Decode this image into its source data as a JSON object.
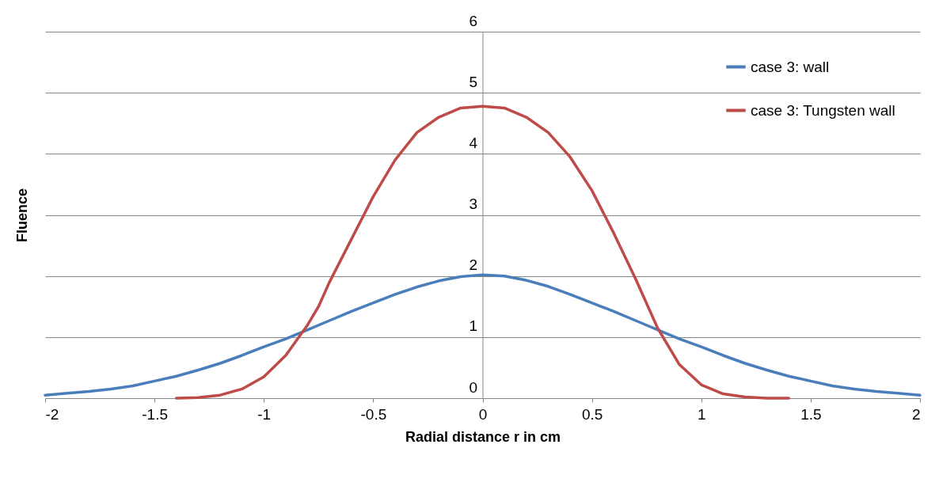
{
  "chart_data": {
    "type": "line",
    "xlabel": "Radial distance  r in cm",
    "ylabel": "Fluence",
    "xlim": [
      -2,
      2
    ],
    "xticks": [
      -2,
      -1.5,
      -1,
      -0.5,
      0,
      0.5,
      1,
      1.5,
      2
    ],
    "ylim": [
      0,
      6
    ],
    "yticks": [
      0,
      1,
      2,
      3,
      4,
      5,
      6
    ],
    "grid": "y",
    "legend": "top right",
    "series": [
      {
        "name": "case 3: wall",
        "color": "#4a7ebb",
        "x": [
          -2,
          -1.9,
          -1.8,
          -1.7,
          -1.6,
          -1.5,
          -1.4,
          -1.3,
          -1.2,
          -1.1,
          -1,
          -0.9,
          -0.8,
          -0.7,
          -0.6,
          -0.5,
          -0.4,
          -0.3,
          -0.2,
          -0.1,
          0,
          0.1,
          0.2,
          0.3,
          0.4,
          0.5,
          0.6,
          0.7,
          0.8,
          0.9,
          1,
          1.1,
          1.2,
          1.3,
          1.4,
          1.5,
          1.6,
          1.7,
          1.8,
          1.9,
          2
        ],
        "values": [
          0.05,
          0.08,
          0.11,
          0.15,
          0.2,
          0.28,
          0.36,
          0.46,
          0.57,
          0.7,
          0.84,
          0.97,
          1.12,
          1.27,
          1.42,
          1.56,
          1.7,
          1.82,
          1.92,
          1.99,
          2.02,
          2,
          1.93,
          1.83,
          1.7,
          1.56,
          1.42,
          1.27,
          1.12,
          0.97,
          0.84,
          0.7,
          0.57,
          0.46,
          0.36,
          0.28,
          0.2,
          0.15,
          0.11,
          0.08,
          0.05
        ]
      },
      {
        "name": "case 3: Tungsten wall",
        "color": "#be4b48",
        "x": [
          -1.4,
          -1.3,
          -1.2,
          -1.1,
          -1,
          -0.9,
          -0.8,
          -0.75,
          -0.7,
          -0.6,
          -0.5,
          -0.4,
          -0.3,
          -0.2,
          -0.1,
          0,
          0.1,
          0.2,
          0.3,
          0.4,
          0.5,
          0.6,
          0.7,
          0.8,
          0.9,
          1,
          1.1,
          1.2,
          1.3,
          1.4
        ],
        "values": [
          0,
          0.01,
          0.05,
          0.15,
          0.35,
          0.7,
          1.2,
          1.5,
          1.9,
          2.6,
          3.3,
          3.9,
          4.35,
          4.6,
          4.75,
          4.78,
          4.75,
          4.6,
          4.35,
          3.95,
          3.4,
          2.7,
          1.95,
          1.15,
          0.55,
          0.22,
          0.07,
          0.02,
          0,
          0
        ]
      }
    ]
  }
}
